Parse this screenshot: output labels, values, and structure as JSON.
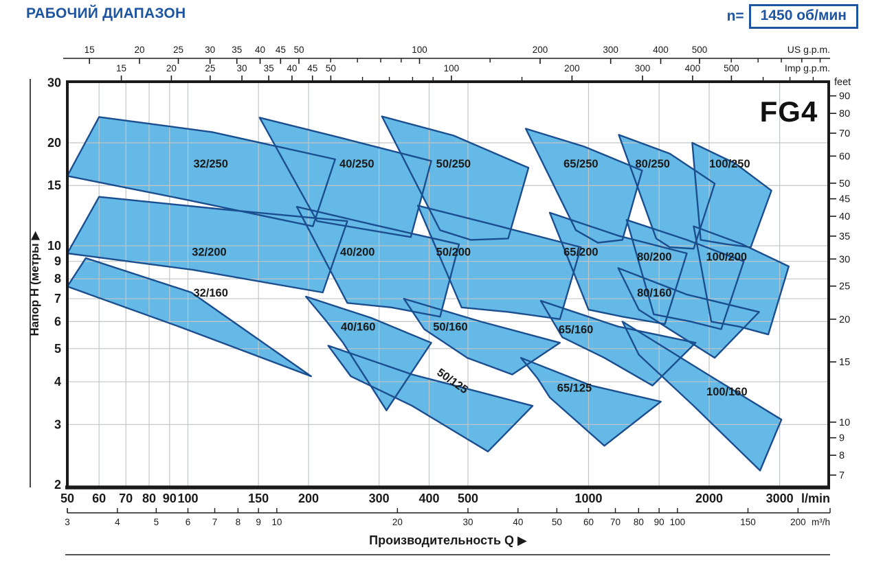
{
  "header": {
    "title": "РАБОЧИЙ ДИАПАЗОН",
    "speed_prefix": "n=",
    "speed_value": "1450 об/мин"
  },
  "colors": {
    "accent": "#1d55a0",
    "region_fill": "#65b9e6",
    "region_stroke": "#1a4e8f",
    "grid": "#c2c6c8",
    "axis": "#1a1a1a",
    "region_label": "#1a1a1a"
  },
  "chart_data": {
    "type": "area",
    "model": "FG4",
    "x_scale": "log",
    "y_scale": "log",
    "x_range_lmin": [
      50,
      3975
    ],
    "y_range_m": [
      2,
      30
    ],
    "x_title": "Производительность Q  ▶",
    "y_title": "Напор H (метры  ▶",
    "axis_us_gpm": {
      "unit": "US g.p.m.",
      "to_lmin": 3.785,
      "ticks": [
        15,
        20,
        25,
        30,
        35,
        40,
        45,
        50,
        100,
        200,
        300,
        400,
        500
      ],
      "minor": [
        60,
        70,
        80,
        90,
        150,
        600,
        700,
        800,
        900,
        1000
      ]
    },
    "axis_imp_gpm": {
      "unit": "Imp g.p.m.",
      "to_lmin": 4.546,
      "ticks": [
        15,
        20,
        25,
        30,
        35,
        40,
        45,
        50,
        100,
        200,
        300,
        400,
        500
      ],
      "minor": [
        60,
        70,
        80,
        90,
        150,
        600,
        700,
        800
      ]
    },
    "axis_lmin": {
      "unit": "l/min",
      "ticks": [
        50,
        60,
        70,
        80,
        90,
        100,
        150,
        200,
        300,
        400,
        500,
        1000,
        2000,
        3000
      ]
    },
    "axis_m3h": {
      "unit": "m³/h",
      "to_lmin": 16.6667,
      "ticks": [
        3,
        4,
        5,
        6,
        7,
        8,
        9,
        10,
        20,
        30,
        40,
        50,
        60,
        70,
        80,
        90,
        100,
        150,
        200
      ]
    },
    "axis_m": {
      "unit": "метры",
      "ticks": [
        2,
        3,
        4,
        5,
        6,
        7,
        8,
        9,
        10,
        15,
        20,
        30
      ]
    },
    "axis_feet": {
      "unit": "feet",
      "to_m": 0.3048,
      "ticks": [
        7,
        8,
        9,
        10,
        15,
        20,
        25,
        30,
        35,
        40,
        45,
        50,
        60,
        70,
        80,
        90
      ]
    },
    "gridlines": {
      "v_lmin": [
        60,
        70,
        80,
        90,
        100,
        150,
        200,
        300,
        400,
        500,
        1000,
        1500,
        2000,
        3000
      ],
      "h_m": [
        3,
        4,
        5,
        6,
        7,
        8,
        9,
        10,
        15,
        20
      ]
    },
    "regions": [
      {
        "label": "32/250",
        "label_q": 114,
        "label_h": 17.4,
        "label_rot": 0,
        "points_q_h": [
          [
            60,
            23.8
          ],
          [
            115,
            21.5
          ],
          [
            233,
            17.9
          ],
          [
            205,
            11.4
          ],
          [
            100,
            13.6
          ],
          [
            50,
            16.0
          ]
        ]
      },
      {
        "label": "40/250",
        "label_q": 264,
        "label_h": 17.4,
        "label_rot": 0,
        "points_q_h": [
          [
            151,
            23.7
          ],
          [
            244,
            20.6
          ],
          [
            405,
            17.7
          ],
          [
            360,
            10.6
          ],
          [
            273,
            11.2
          ],
          [
            210,
            11.8
          ]
        ]
      },
      {
        "label": "50/250",
        "label_q": 460,
        "label_h": 17.4,
        "label_rot": 0,
        "points_q_h": [
          [
            305,
            23.9
          ],
          [
            460,
            21.0
          ],
          [
            708,
            16.9
          ],
          [
            630,
            10.5
          ],
          [
            508,
            10.4
          ],
          [
            426,
            11.1
          ]
        ]
      },
      {
        "label": "65/250",
        "label_q": 957,
        "label_h": 17.4,
        "label_rot": 0,
        "points_q_h": [
          [
            697,
            22.0
          ],
          [
            975,
            19.5
          ],
          [
            1360,
            16.6
          ],
          [
            1215,
            10.4
          ],
          [
            1055,
            10.2
          ],
          [
            930,
            11.1
          ]
        ]
      },
      {
        "label": "80/250",
        "label_q": 1445,
        "label_h": 17.4,
        "label_rot": 0,
        "points_q_h": [
          [
            1190,
            21.1
          ],
          [
            1595,
            18.6
          ],
          [
            2065,
            15.2
          ],
          [
            1830,
            9.8
          ],
          [
            1595,
            9.9
          ],
          [
            1475,
            10.5
          ]
        ]
      },
      {
        "label": "100/250",
        "label_q": 2250,
        "label_h": 17.4,
        "label_rot": 0,
        "points_q_h": [
          [
            1815,
            20.0
          ],
          [
            2325,
            17.4
          ],
          [
            2860,
            14.5
          ],
          [
            2540,
            9.9
          ],
          [
            2215,
            10.1
          ],
          [
            1905,
            10.4
          ]
        ]
      },
      {
        "label": "32/200",
        "label_q": 113,
        "label_h": 9.6,
        "label_rot": 0,
        "points_q_h": [
          [
            60,
            13.9
          ],
          [
            120,
            12.8
          ],
          [
            250,
            11.8
          ],
          [
            217,
            7.3
          ],
          [
            103,
            8.5
          ],
          [
            50,
            9.5
          ]
        ]
      },
      {
        "label": "40/200",
        "label_q": 265,
        "label_h": 9.6,
        "label_rot": 0,
        "points_q_h": [
          [
            187,
            13.0
          ],
          [
            292,
            11.5
          ],
          [
            475,
            10.1
          ],
          [
            426,
            6.2
          ],
          [
            322,
            6.6
          ],
          [
            250,
            6.8
          ]
        ]
      },
      {
        "label": "50/200",
        "label_q": 460,
        "label_h": 9.6,
        "label_rot": 0,
        "points_q_h": [
          [
            375,
            13.1
          ],
          [
            583,
            11.5
          ],
          [
            957,
            9.9
          ],
          [
            848,
            6.1
          ],
          [
            631,
            6.4
          ],
          [
            482,
            6.6
          ]
        ]
      },
      {
        "label": "65/200",
        "label_q": 957,
        "label_h": 9.6,
        "label_rot": 0,
        "points_q_h": [
          [
            800,
            12.5
          ],
          [
            1186,
            10.7
          ],
          [
            1759,
            9.5
          ],
          [
            1550,
            5.9
          ],
          [
            1215,
            6.2
          ],
          [
            1000,
            6.5
          ]
        ]
      },
      {
        "label": "80/200",
        "label_q": 1460,
        "label_h": 9.3,
        "label_rot": 0,
        "points_q_h": [
          [
            1245,
            11.9
          ],
          [
            1759,
            10.4
          ],
          [
            2440,
            9.0
          ],
          [
            2143,
            5.7
          ],
          [
            1800,
            6.0
          ],
          [
            1455,
            6.3
          ]
        ]
      },
      {
        "label": "100/200",
        "label_q": 2210,
        "label_h": 9.3,
        "label_rot": 0,
        "points_q_h": [
          [
            1830,
            11.4
          ],
          [
            2420,
            10.1
          ],
          [
            3160,
            8.7
          ],
          [
            2810,
            5.5
          ],
          [
            2375,
            5.8
          ],
          [
            2025,
            6.0
          ]
        ]
      },
      {
        "label": "32/160",
        "label_q": 114,
        "label_h": 7.3,
        "label_rot": 0,
        "points_q_h": [
          [
            55.6,
            9.2
          ],
          [
            102,
            7.3
          ],
          [
            203,
            4.15
          ],
          [
            95,
            5.8
          ],
          [
            50,
            7.6
          ]
        ]
      },
      {
        "label": "40/160",
        "label_q": 266,
        "label_h": 5.8,
        "label_rot": 0,
        "points_q_h": [
          [
            197,
            7.1
          ],
          [
            287,
            6.15
          ],
          [
            405,
            5.2
          ],
          [
            313,
            3.3
          ],
          [
            244,
            5.2
          ],
          [
            222,
            6.0
          ]
        ]
      },
      {
        "label": "50/160",
        "label_q": 452,
        "label_h": 5.8,
        "label_rot": 0,
        "points_q_h": [
          [
            346,
            7.0
          ],
          [
            538,
            6.0
          ],
          [
            848,
            5.2
          ],
          [
            645,
            4.2
          ],
          [
            498,
            4.7
          ],
          [
            389,
            5.7
          ]
        ]
      },
      {
        "label": "65/160",
        "label_q": 930,
        "label_h": 5.7,
        "label_rot": 0,
        "points_q_h": [
          [
            760,
            6.9
          ],
          [
            1186,
            5.8
          ],
          [
            1850,
            5.2
          ],
          [
            1444,
            3.9
          ],
          [
            1095,
            4.7
          ],
          [
            860,
            5.4
          ]
        ]
      },
      {
        "label": "80/160",
        "label_q": 1460,
        "label_h": 7.3,
        "label_rot": 0,
        "points_q_h": [
          [
            1186,
            8.6
          ],
          [
            1759,
            7.2
          ],
          [
            2665,
            6.4
          ],
          [
            2065,
            4.7
          ],
          [
            1630,
            5.6
          ],
          [
            1335,
            6.5
          ]
        ]
      },
      {
        "label": "100/160",
        "label_q": 2215,
        "label_h": 3.75,
        "label_rot": 0,
        "points_q_h": [
          [
            1215,
            6.0
          ],
          [
            1985,
            4.2
          ],
          [
            3030,
            3.1
          ],
          [
            2680,
            2.2
          ],
          [
            1830,
            3.4
          ],
          [
            1335,
            4.8
          ]
        ]
      },
      {
        "label": "50/125",
        "label_q": 452,
        "label_h": 4.05,
        "label_rot": 35,
        "points_q_h": [
          [
            224,
            5.1
          ],
          [
            363,
            4.2
          ],
          [
            725,
            3.4
          ],
          [
            561,
            2.5
          ],
          [
            363,
            3.4
          ],
          [
            255,
            4.15
          ]
        ]
      },
      {
        "label": "65/125",
        "label_q": 922,
        "label_h": 3.85,
        "label_rot": 0,
        "points_q_h": [
          [
            678,
            4.7
          ],
          [
            1015,
            3.9
          ],
          [
            1515,
            3.5
          ],
          [
            1095,
            2.6
          ],
          [
            800,
            3.6
          ],
          [
            745,
            4.1
          ]
        ]
      }
    ]
  }
}
